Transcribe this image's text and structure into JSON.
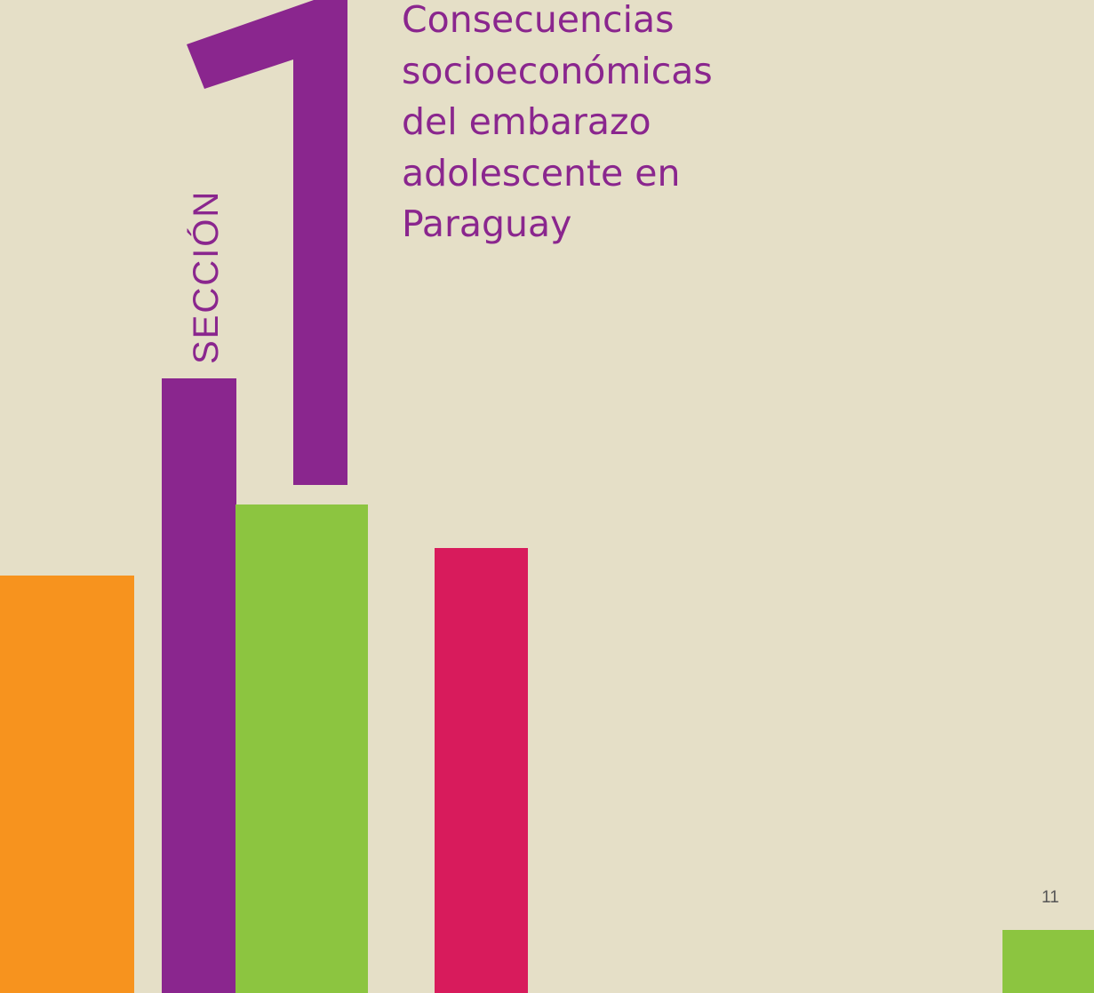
{
  "section": {
    "label": "SECCIÓN",
    "number": "1"
  },
  "title": {
    "lines": [
      "Consecuencias",
      "socioeconómicas",
      "del embarazo",
      "adolescente en",
      "Paraguay"
    ]
  },
  "page_number": "11",
  "colors": {
    "background": "#e5dfc7",
    "purple": "#8a268e",
    "orange": "#f7931e",
    "green": "#8cc540",
    "pink": "#d81b5c",
    "page_number": "#555555"
  },
  "decorative_bars": [
    {
      "name": "orange-bar",
      "color": "orange"
    },
    {
      "name": "purple-bar",
      "color": "purple"
    },
    {
      "name": "green-bar",
      "color": "green"
    },
    {
      "name": "pink-bar",
      "color": "pink"
    },
    {
      "name": "corner-green-bar",
      "color": "green"
    }
  ]
}
